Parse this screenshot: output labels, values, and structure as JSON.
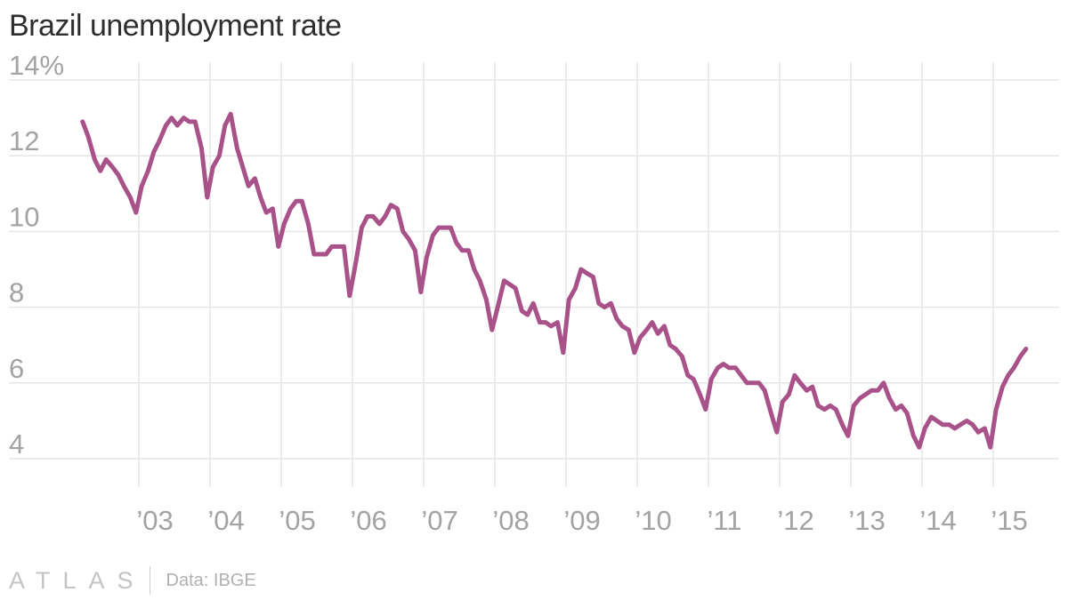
{
  "title": "Brazil unemployment rate",
  "footer": {
    "brand": "ATLAS",
    "source": "Data: IBGE"
  },
  "colors": {
    "line": "#a9528a",
    "grid": "#e6e6e6",
    "labels": "#a3a3a3"
  },
  "chart_data": {
    "type": "line",
    "title": "Brazil unemployment rate",
    "xlabel": "",
    "ylabel": "",
    "ylim": [
      3.2,
      14.3
    ],
    "xlim": [
      2002.0,
      2015.6
    ],
    "grid": true,
    "yticks": [
      4,
      6,
      8,
      10,
      12,
      14
    ],
    "ytick_labels": [
      "4",
      "6",
      "8",
      "10",
      "12",
      "14%"
    ],
    "xticks": [
      2003,
      2004,
      2005,
      2006,
      2007,
      2008,
      2009,
      2010,
      2011,
      2012,
      2013,
      2014,
      2015
    ],
    "xtick_labels": [
      "’03",
      "’04",
      "’05",
      "’06",
      "’07",
      "’08",
      "’09",
      "’10",
      "’11",
      "’12",
      "’13",
      "’14",
      "’15"
    ],
    "series": [
      {
        "name": "",
        "x": [
          2002.21,
          2002.29,
          2002.38,
          2002.46,
          2002.54,
          2002.63,
          2002.71,
          2002.79,
          2002.88,
          2002.96,
          2003.04,
          2003.13,
          2003.21,
          2003.29,
          2003.38,
          2003.46,
          2003.54,
          2003.63,
          2003.71,
          2003.79,
          2003.88,
          2003.96,
          2004.04,
          2004.13,
          2004.21,
          2004.29,
          2004.38,
          2004.46,
          2004.54,
          2004.63,
          2004.71,
          2004.79,
          2004.88,
          2004.96,
          2005.04,
          2005.13,
          2005.21,
          2005.29,
          2005.38,
          2005.46,
          2005.54,
          2005.63,
          2005.71,
          2005.79,
          2005.88,
          2005.96,
          2006.04,
          2006.13,
          2006.21,
          2006.29,
          2006.38,
          2006.46,
          2006.54,
          2006.63,
          2006.71,
          2006.79,
          2006.88,
          2006.96,
          2007.04,
          2007.13,
          2007.21,
          2007.29,
          2007.38,
          2007.46,
          2007.54,
          2007.63,
          2007.71,
          2007.79,
          2007.88,
          2007.96,
          2008.04,
          2008.13,
          2008.21,
          2008.29,
          2008.38,
          2008.46,
          2008.54,
          2008.63,
          2008.71,
          2008.79,
          2008.88,
          2008.96,
          2009.04,
          2009.13,
          2009.21,
          2009.29,
          2009.38,
          2009.46,
          2009.54,
          2009.63,
          2009.71,
          2009.79,
          2009.88,
          2009.96,
          2010.04,
          2010.13,
          2010.21,
          2010.29,
          2010.38,
          2010.46,
          2010.54,
          2010.63,
          2010.71,
          2010.79,
          2010.88,
          2010.96,
          2011.04,
          2011.13,
          2011.21,
          2011.29,
          2011.38,
          2011.46,
          2011.54,
          2011.63,
          2011.71,
          2011.79,
          2011.88,
          2011.96,
          2012.04,
          2012.13,
          2012.21,
          2012.29,
          2012.38,
          2012.46,
          2012.54,
          2012.63,
          2012.71,
          2012.79,
          2012.88,
          2012.96,
          2013.04,
          2013.13,
          2013.21,
          2013.29,
          2013.38,
          2013.46,
          2013.54,
          2013.63,
          2013.71,
          2013.79,
          2013.88,
          2013.96,
          2014.04,
          2014.13,
          2014.21,
          2014.29,
          2014.38,
          2014.46,
          2014.54,
          2014.63,
          2014.71,
          2014.79,
          2014.88,
          2014.96,
          2015.04,
          2015.13,
          2015.21,
          2015.29,
          2015.38,
          2015.46
        ],
        "values": [
          12.9,
          12.5,
          11.9,
          11.6,
          11.9,
          11.7,
          11.5,
          11.2,
          10.9,
          10.5,
          11.2,
          11.6,
          12.1,
          12.4,
          12.8,
          13.0,
          12.8,
          13.0,
          12.9,
          12.9,
          12.2,
          10.9,
          11.7,
          12.0,
          12.8,
          13.1,
          12.2,
          11.7,
          11.2,
          11.4,
          10.9,
          10.5,
          10.6,
          9.6,
          10.2,
          10.6,
          10.8,
          10.8,
          10.2,
          9.4,
          9.4,
          9.4,
          9.6,
          9.6,
          9.6,
          8.3,
          9.1,
          10.1,
          10.4,
          10.4,
          10.2,
          10.4,
          10.7,
          10.6,
          10.0,
          9.8,
          9.5,
          8.4,
          9.3,
          9.9,
          10.1,
          10.1,
          10.1,
          9.7,
          9.5,
          9.5,
          9.0,
          8.7,
          8.2,
          7.4,
          8.0,
          8.7,
          8.6,
          8.5,
          7.9,
          7.8,
          8.1,
          7.6,
          7.6,
          7.5,
          7.6,
          6.8,
          8.2,
          8.5,
          9.0,
          8.9,
          8.8,
          8.1,
          8.0,
          8.1,
          7.7,
          7.5,
          7.4,
          6.8,
          7.2,
          7.4,
          7.6,
          7.3,
          7.5,
          7.0,
          6.9,
          6.7,
          6.2,
          6.1,
          5.7,
          5.3,
          6.1,
          6.4,
          6.5,
          6.4,
          6.4,
          6.2,
          6.0,
          6.0,
          6.0,
          5.8,
          5.2,
          4.7,
          5.5,
          5.7,
          6.2,
          6.0,
          5.8,
          5.9,
          5.4,
          5.3,
          5.4,
          5.3,
          4.9,
          4.6,
          5.4,
          5.6,
          5.7,
          5.8,
          5.8,
          6.0,
          5.6,
          5.3,
          5.4,
          5.2,
          4.6,
          4.3,
          4.8,
          5.1,
          5.0,
          4.9,
          4.9,
          4.8,
          4.9,
          5.0,
          4.9,
          4.7,
          4.8,
          4.3,
          5.3,
          5.9,
          6.2,
          6.4,
          6.7,
          6.9
        ]
      }
    ]
  }
}
